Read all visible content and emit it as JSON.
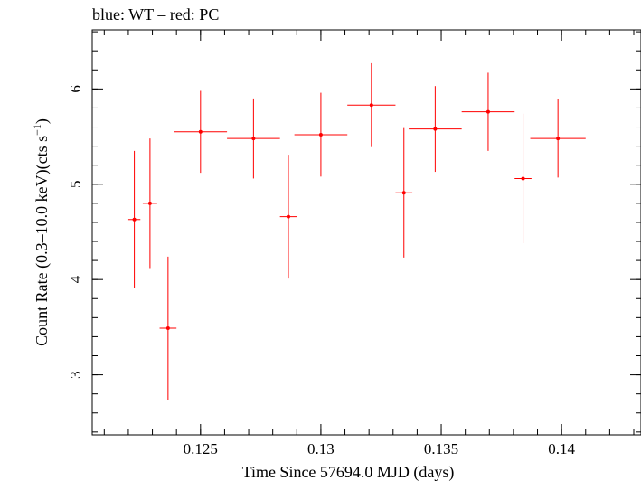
{
  "chart_data": {
    "type": "scatter",
    "title": "blue: WT – red: PC",
    "xlabel": "Time Since 57694.0 MJD (days)",
    "ylabel_main": "Count Rate (0.3–10.0 keV)(cts s",
    "ylabel_sup": "−1",
    "ylabel_end": ")",
    "xlim": [
      0.1205,
      0.1433
    ],
    "ylim": [
      2.37,
      6.62
    ],
    "xticks": [
      {
        "value": 0.125,
        "label": "0.125"
      },
      {
        "value": 0.13,
        "label": "0.13"
      },
      {
        "value": 0.135,
        "label": "0.135"
      },
      {
        "value": 0.14,
        "label": "0.14"
      }
    ],
    "yticks": [
      {
        "value": 3,
        "label": "3"
      },
      {
        "value": 4,
        "label": "4"
      },
      {
        "value": 5,
        "label": "5"
      },
      {
        "value": 6,
        "label": "6"
      }
    ],
    "x_minor_step": 0.001,
    "y_minor_step": 0.2,
    "grid": false,
    "series": [
      {
        "color": "#ff0000",
        "points": [
          {
            "x": 0.12225,
            "xerr": 0.00025,
            "y": 4.63,
            "yerr": 0.72
          },
          {
            "x": 0.1229,
            "xerr": 0.0003,
            "y": 4.8,
            "yerr": 0.68
          },
          {
            "x": 0.12365,
            "xerr": 0.00035,
            "y": 3.49,
            "yerr": 0.75
          },
          {
            "x": 0.125,
            "xerr": 0.0011,
            "y": 5.55,
            "yerr": 0.43
          },
          {
            "x": 0.1272,
            "xerr": 0.0011,
            "y": 5.48,
            "yerr": 0.42
          },
          {
            "x": 0.12865,
            "xerr": 0.00035,
            "y": 4.66,
            "yerr": 0.65
          },
          {
            "x": 0.13,
            "xerr": 0.0011,
            "y": 5.52,
            "yerr": 0.44
          },
          {
            "x": 0.1321,
            "xerr": 0.001,
            "y": 5.83,
            "yerr": 0.44
          },
          {
            "x": 0.13345,
            "xerr": 0.00035,
            "y": 4.91,
            "yerr": 0.68
          },
          {
            "x": 0.13475,
            "xerr": 0.0011,
            "y": 5.58,
            "yerr": 0.45
          },
          {
            "x": 0.13695,
            "xerr": 0.0011,
            "y": 5.76,
            "yerr": 0.41
          },
          {
            "x": 0.1384,
            "xerr": 0.00035,
            "y": 5.06,
            "yerr": 0.68
          },
          {
            "x": 0.13985,
            "xerr": 0.00115,
            "y": 5.48,
            "yerr": 0.41
          }
        ]
      }
    ]
  }
}
